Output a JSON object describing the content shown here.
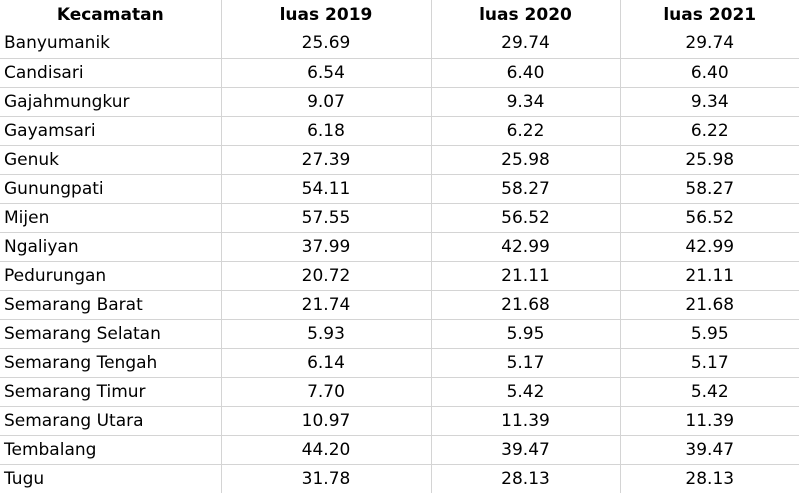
{
  "table": {
    "headers": [
      "Kecamatan",
      "luas 2019",
      "luas 2020",
      "luas 2021"
    ],
    "rows": [
      [
        "Banyumanik",
        "25.69",
        "29.74",
        "29.74"
      ],
      [
        "Candisari",
        "6.54",
        "6.40",
        "6.40"
      ],
      [
        "Gajahmungkur",
        "9.07",
        "9.34",
        "9.34"
      ],
      [
        "Gayamsari",
        "6.18",
        "6.22",
        "6.22"
      ],
      [
        "Genuk",
        "27.39",
        "25.98",
        "25.98"
      ],
      [
        "Gunungpati",
        "54.11",
        "58.27",
        "58.27"
      ],
      [
        "Mijen",
        "57.55",
        "56.52",
        "56.52"
      ],
      [
        "Ngaliyan",
        "37.99",
        "42.99",
        "42.99"
      ],
      [
        "Pedurungan",
        "20.72",
        "21.11",
        "21.11"
      ],
      [
        "Semarang Barat",
        "21.74",
        "21.68",
        "21.68"
      ],
      [
        "Semarang Selatan",
        "5.93",
        "5.95",
        "5.95"
      ],
      [
        "Semarang Tengah",
        "6.14",
        "5.17",
        "5.17"
      ],
      [
        "Semarang Timur",
        "7.70",
        "5.42",
        "5.42"
      ],
      [
        "Semarang Utara",
        "10.97",
        "11.39",
        "11.39"
      ],
      [
        "Tembalang",
        "44.20",
        "39.47",
        "39.47"
      ],
      [
        "Tugu",
        "31.78",
        "28.13",
        "28.13"
      ]
    ]
  }
}
